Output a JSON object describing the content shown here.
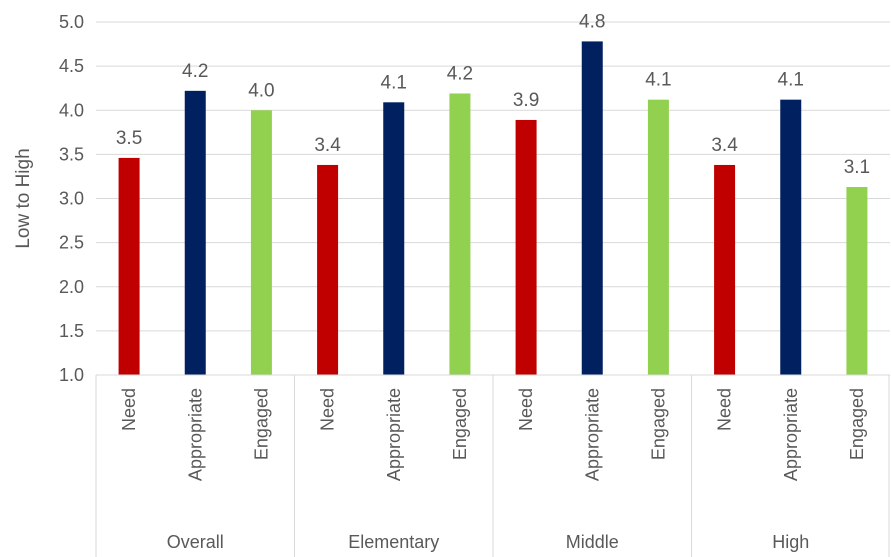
{
  "chart_data": {
    "type": "bar",
    "title": "",
    "xlabel": "",
    "ylabel": "Low to High",
    "ylim": [
      1.0,
      5.0
    ],
    "yticks": [
      "1.0",
      "1.5",
      "2.0",
      "2.5",
      "3.0",
      "3.5",
      "4.0",
      "4.5",
      "5.0"
    ],
    "grid": true,
    "legend": "none",
    "groups": [
      {
        "name": "Overall",
        "bars": [
          {
            "category": "Need",
            "value": 3.46,
            "label": "3.5",
            "color": "#c00000"
          },
          {
            "category": "Appropriate",
            "value": 4.22,
            "label": "4.2",
            "color": "#002060"
          },
          {
            "category": "Engaged",
            "value": 4.0,
            "label": "4.0",
            "color": "#92d050"
          }
        ]
      },
      {
        "name": "Elementary",
        "bars": [
          {
            "category": "Need",
            "value": 3.38,
            "label": "3.4",
            "color": "#c00000"
          },
          {
            "category": "Appropriate",
            "value": 4.09,
            "label": "4.1",
            "color": "#002060"
          },
          {
            "category": "Engaged",
            "value": 4.19,
            "label": "4.2",
            "color": "#92d050"
          }
        ]
      },
      {
        "name": "Middle",
        "bars": [
          {
            "category": "Need",
            "value": 3.89,
            "label": "3.9",
            "color": "#c00000"
          },
          {
            "category": "Appropriate",
            "value": 4.78,
            "label": "4.8",
            "color": "#002060"
          },
          {
            "category": "Engaged",
            "value": 4.12,
            "label": "4.1",
            "color": "#92d050"
          }
        ]
      },
      {
        "name": "High",
        "bars": [
          {
            "category": "Need",
            "value": 3.38,
            "label": "3.4",
            "color": "#c00000"
          },
          {
            "category": "Appropriate",
            "value": 4.12,
            "label": "4.1",
            "color": "#002060"
          },
          {
            "category": "Engaged",
            "value": 3.13,
            "label": "3.1",
            "color": "#92d050"
          }
        ]
      }
    ]
  }
}
